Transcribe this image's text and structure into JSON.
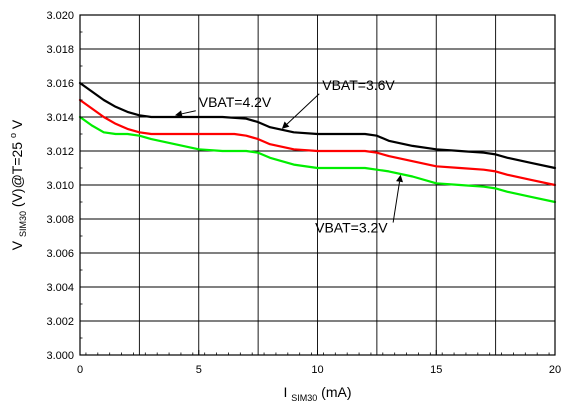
{
  "chart_data": {
    "type": "line",
    "title": "",
    "xlabel": {
      "main": "I",
      "sub": "SIM30",
      "suffix": "(mA)"
    },
    "ylabel": {
      "prefix": "V",
      "sub": "SIM30",
      "mid": "(V)@T=25",
      "sup": "o",
      "suffix": "V"
    },
    "xlim": [
      0,
      20
    ],
    "ylim": [
      3.0,
      3.02
    ],
    "x_ticks": [
      0,
      5,
      10,
      15,
      20
    ],
    "y_ticks": [
      3.0,
      3.002,
      3.004,
      3.006,
      3.008,
      3.01,
      3.012,
      3.014,
      3.016,
      3.018,
      3.02
    ],
    "x_tick_labels": [
      "0",
      "5",
      "10",
      "15",
      "20"
    ],
    "y_tick_labels": [
      "3.000",
      "3.002",
      "3.004",
      "3.006",
      "3.008",
      "3.010",
      "3.012",
      "3.014",
      "3.016",
      "3.018",
      "3.020"
    ],
    "grid": true,
    "legend": "none",
    "series": [
      {
        "name": "VBAT=4.2V",
        "color": "#000000",
        "x": [
          0,
          0.5,
          1,
          1.5,
          2,
          2.5,
          3,
          3.5,
          4,
          5,
          6,
          7,
          7.5,
          8,
          9,
          10,
          11,
          12,
          12.5,
          13,
          14,
          15,
          16,
          17,
          17.5,
          18,
          19,
          20
        ],
        "y": [
          3.016,
          3.0155,
          3.015,
          3.0146,
          3.0143,
          3.0141,
          3.014,
          3.014,
          3.014,
          3.014,
          3.014,
          3.0139,
          3.0137,
          3.0134,
          3.0131,
          3.013,
          3.013,
          3.013,
          3.0129,
          3.0126,
          3.0123,
          3.0121,
          3.012,
          3.0119,
          3.0118,
          3.0116,
          3.0113,
          3.011
        ]
      },
      {
        "name": "VBAT=3.6V",
        "color": "#ff0000",
        "x": [
          0,
          0.5,
          1,
          1.5,
          2,
          2.5,
          3,
          4,
          5,
          6,
          6.5,
          7,
          7.5,
          8,
          9,
          10,
          11,
          12,
          12.5,
          13,
          14,
          15,
          16,
          17,
          17.5,
          18,
          19,
          20
        ],
        "y": [
          3.015,
          3.0145,
          3.014,
          3.0136,
          3.0133,
          3.0131,
          3.013,
          3.013,
          3.013,
          3.013,
          3.013,
          3.0129,
          3.0127,
          3.0124,
          3.0121,
          3.012,
          3.012,
          3.012,
          3.0119,
          3.0117,
          3.0114,
          3.0111,
          3.011,
          3.0109,
          3.0108,
          3.0106,
          3.0103,
          3.01
        ]
      },
      {
        "name": "VBAT=3.2V",
        "color": "#00ee00",
        "x": [
          0,
          0.5,
          1,
          1.5,
          2,
          2.5,
          3,
          4,
          5,
          6,
          7,
          7.5,
          8,
          9,
          10,
          11,
          12,
          12.5,
          13,
          14,
          15,
          16,
          17,
          17.5,
          18,
          19,
          20
        ],
        "y": [
          3.014,
          3.0135,
          3.0131,
          3.013,
          3.013,
          3.0129,
          3.0127,
          3.0124,
          3.0121,
          3.012,
          3.012,
          3.0119,
          3.0116,
          3.0112,
          3.011,
          3.011,
          3.011,
          3.0109,
          3.0108,
          3.0105,
          3.0101,
          3.01,
          3.0099,
          3.0098,
          3.0096,
          3.0093,
          3.009
        ]
      }
    ],
    "annotations": [
      {
        "text": "VBAT=4.2V",
        "series": 0,
        "text_x": 5.0,
        "text_y": 3.0146,
        "arrow_to_x": 4.0,
        "arrow_to_y": 3.0141
      },
      {
        "text": "VBAT=3.6V",
        "series": 1,
        "text_x": 10.2,
        "text_y": 3.0156,
        "arrow_to_x": 8.5,
        "arrow_to_y": 3.0133
      },
      {
        "text": "VBAT=3.2V",
        "series": 2,
        "text_x": 9.9,
        "text_y": 3.0072,
        "arrow_to_x": 13.5,
        "arrow_to_y": 3.0106
      }
    ]
  }
}
